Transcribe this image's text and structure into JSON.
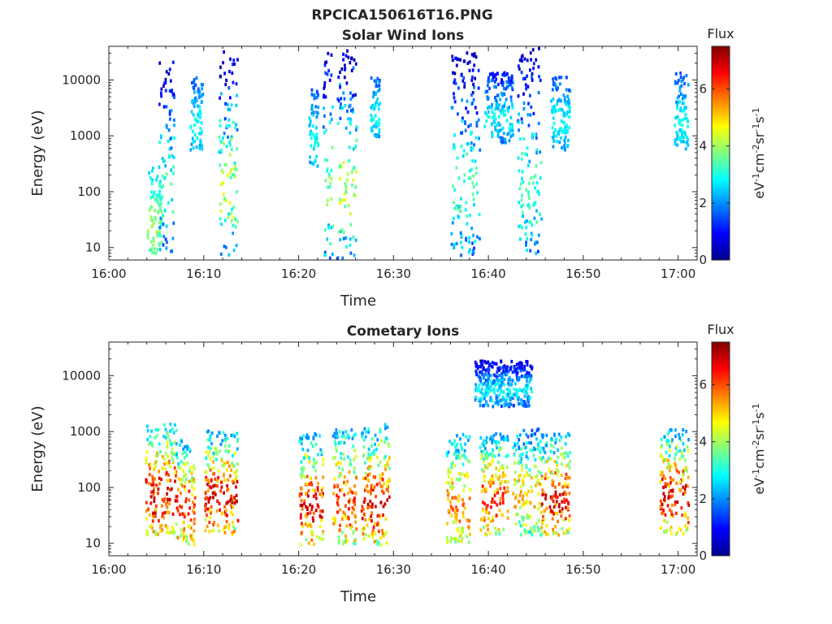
{
  "figure_title": "RPCICA150616T16.PNG",
  "colormap": [
    "#00008f",
    "#0000ff",
    "#0080ff",
    "#00ffff",
    "#80ff80",
    "#ffff00",
    "#ff8000",
    "#ff0000",
    "#800000"
  ],
  "chart_data": [
    {
      "type": "heatmap",
      "title": "Solar Wind Ions",
      "xlabel": "Time",
      "ylabel": "Energy (eV)",
      "x_ticks": [
        "16:00",
        "16:10",
        "16:20",
        "16:30",
        "16:40",
        "16:50",
        "17:00"
      ],
      "x_range_min": [
        0,
        62
      ],
      "y_scale": "log",
      "y_ticks": [
        "10",
        "100",
        "1000",
        "10000"
      ],
      "y_range": [
        6,
        40000
      ],
      "colorbar": {
        "label": "Flux",
        "units": "eV-1cm-2sr-1s-1",
        "ticks": [
          "0",
          "2",
          "4",
          "6"
        ],
        "range": [
          0,
          7.5
        ]
      },
      "clusters": [
        {
          "t": [
            4.0,
            5.5
          ],
          "e": [
            6,
            300
          ],
          "flux": [
            2.5,
            4.0
          ]
        },
        {
          "t": [
            5.2,
            6.8
          ],
          "e": [
            8,
            30000
          ],
          "flux": [
            0.3,
            3.5
          ]
        },
        {
          "t": [
            8.5,
            9.8
          ],
          "e": [
            600,
            12000
          ],
          "flux": [
            1.5,
            3.0
          ]
        },
        {
          "t": [
            11.5,
            13.5
          ],
          "e": [
            6,
            35000
          ],
          "flux": [
            0.3,
            4.5
          ]
        },
        {
          "t": [
            21.0,
            22.0
          ],
          "e": [
            300,
            8000
          ],
          "flux": [
            1.5,
            3.0
          ]
        },
        {
          "t": [
            22.5,
            23.5
          ],
          "e": [
            6,
            35000
          ],
          "flux": [
            0.5,
            4.0
          ]
        },
        {
          "t": [
            24.0,
            26.0
          ],
          "e": [
            6,
            40000
          ],
          "flux": [
            0.3,
            4.5
          ]
        },
        {
          "t": [
            27.5,
            28.5
          ],
          "e": [
            1000,
            12000
          ],
          "flux": [
            1.5,
            3.0
          ]
        },
        {
          "t": [
            36.0,
            39.0
          ],
          "e": [
            6,
            35000
          ],
          "flux": [
            0.3,
            3.5
          ]
        },
        {
          "t": [
            39.5,
            42.5
          ],
          "e": [
            800,
            15000
          ],
          "flux": [
            1.0,
            3.0
          ]
        },
        {
          "t": [
            43.0,
            45.5
          ],
          "e": [
            6,
            40000
          ],
          "flux": [
            0.3,
            3.5
          ]
        },
        {
          "t": [
            46.5,
            48.5
          ],
          "e": [
            600,
            12000
          ],
          "flux": [
            1.5,
            3.0
          ]
        },
        {
          "t": [
            59.5,
            61.0
          ],
          "e": [
            600,
            15000
          ],
          "flux": [
            1.5,
            3.0
          ]
        }
      ]
    },
    {
      "type": "heatmap",
      "title": "Cometary Ions",
      "xlabel": "Time",
      "ylabel": "Energy (eV)",
      "x_ticks": [
        "16:00",
        "16:10",
        "16:20",
        "16:30",
        "16:40",
        "16:50",
        "17:00"
      ],
      "x_range_min": [
        0,
        62
      ],
      "y_scale": "log",
      "y_ticks": [
        "10",
        "100",
        "1000",
        "10000"
      ],
      "y_range": [
        6,
        40000
      ],
      "colorbar": {
        "label": "Flux",
        "units": "eV-1cm-2sr-1s-1",
        "ticks": [
          "0",
          "2",
          "4",
          "6"
        ],
        "range": [
          0,
          7.5
        ]
      },
      "clusters": [
        {
          "t": [
            3.8,
            7.0
          ],
          "e": [
            15,
            1500
          ],
          "flux": [
            2.5,
            7.0
          ]
        },
        {
          "t": [
            7.0,
            9.0
          ],
          "e": [
            10,
            800
          ],
          "flux": [
            2.0,
            6.5
          ]
        },
        {
          "t": [
            10.0,
            13.5
          ],
          "e": [
            15,
            1200
          ],
          "flux": [
            2.0,
            7.0
          ]
        },
        {
          "t": [
            20.0,
            22.5
          ],
          "e": [
            10,
            1000
          ],
          "flux": [
            2.0,
            7.0
          ]
        },
        {
          "t": [
            23.5,
            26.0
          ],
          "e": [
            10,
            1200
          ],
          "flux": [
            2.0,
            6.5
          ]
        },
        {
          "t": [
            26.5,
            29.5
          ],
          "e": [
            10,
            1500
          ],
          "flux": [
            2.0,
            7.0
          ]
        },
        {
          "t": [
            35.5,
            38.0
          ],
          "e": [
            10,
            1000
          ],
          "flux": [
            2.0,
            6.0
          ]
        },
        {
          "t": [
            39.0,
            42.0
          ],
          "e": [
            15,
            1000
          ],
          "flux": [
            2.0,
            6.5
          ]
        },
        {
          "t": [
            42.5,
            45.5
          ],
          "e": [
            15,
            1200
          ],
          "flux": [
            1.5,
            5.5
          ]
        },
        {
          "t": [
            45.5,
            48.5
          ],
          "e": [
            15,
            1000
          ],
          "flux": [
            2.0,
            7.0
          ]
        },
        {
          "t": [
            58.0,
            61.0
          ],
          "e": [
            15,
            1200
          ],
          "flux": [
            2.0,
            7.0
          ]
        },
        {
          "t": [
            38.5,
            44.5
          ],
          "e": [
            3000,
            20000
          ],
          "flux": [
            0.5,
            3.0
          ]
        }
      ]
    }
  ]
}
